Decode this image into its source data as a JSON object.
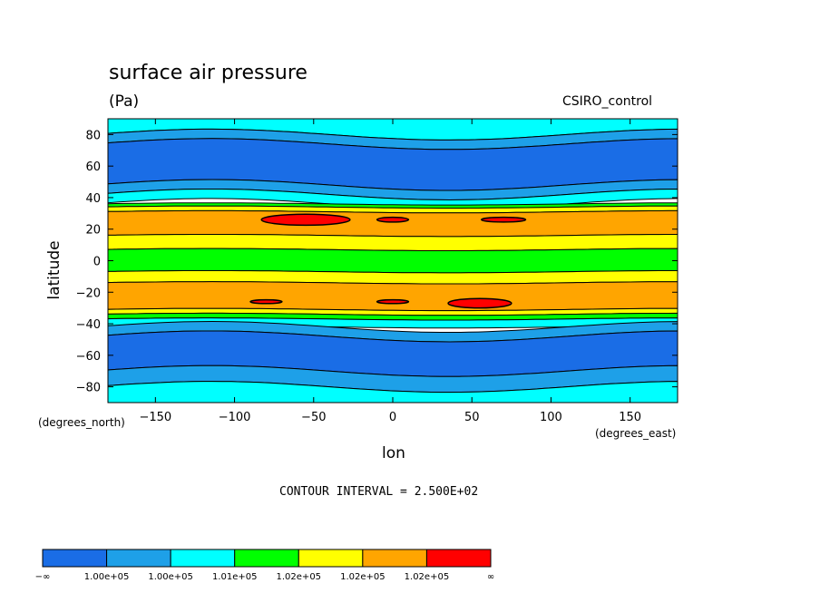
{
  "chart_data": {
    "type": "heatmap",
    "title": "surface air pressure",
    "units": "(Pa)",
    "model": "CSIRO_control",
    "xlabel": "lon",
    "ylabel": "latitude",
    "x_units": "(degrees_east)",
    "y_units": "(degrees_north)",
    "xlim": [
      -180,
      180
    ],
    "ylim": [
      -90,
      90
    ],
    "x_ticks": [
      -150,
      -100,
      -50,
      0,
      50,
      100,
      150
    ],
    "y_ticks": [
      80,
      60,
      40,
      20,
      0,
      -20,
      -40,
      -60,
      -80
    ],
    "x_tick_labels": [
      "−150",
      "−100",
      "−50",
      "0",
      "50",
      "100",
      "150"
    ],
    "y_tick_labels": [
      "80",
      "60",
      "40",
      "20",
      "0",
      "−20",
      "−40",
      "−60",
      "−80"
    ],
    "contour_interval": "CONTOUR INTERVAL = 2.500E+02",
    "colorbar": {
      "colors": [
        "#1a6de6",
        "#1ea0e8",
        "#00ffff",
        "#00ff00",
        "#ffff00",
        "#ffa500",
        "#ff0000"
      ],
      "labels": [
        "−∞",
        "1.00e+05",
        "1.00e+05",
        "1.01e+05",
        "1.02e+05",
        "1.02e+05",
        "1.02e+05",
        "∞"
      ]
    },
    "zonal_bands": [
      {
        "lat": [
          80,
          90
        ],
        "level": 2
      },
      {
        "lat": [
          74,
          80
        ],
        "level": 1
      },
      {
        "lat": [
          48,
          74
        ],
        "level": 0
      },
      {
        "lat": [
          42,
          48
        ],
        "level": 1
      },
      {
        "lat": [
          36,
          42
        ],
        "level": 2
      },
      {
        "lat": [
          34,
          36
        ],
        "level": 3
      },
      {
        "lat": [
          31,
          34
        ],
        "level": 4
      },
      {
        "lat": [
          16,
          31
        ],
        "level": 5
      },
      {
        "lat": [
          7,
          16
        ],
        "level": 4
      },
      {
        "lat": [
          -7,
          7
        ],
        "level": 3
      },
      {
        "lat": [
          -14,
          -7
        ],
        "level": 4
      },
      {
        "lat": [
          -31,
          -14
        ],
        "level": 5
      },
      {
        "lat": [
          -34,
          -31
        ],
        "level": 4
      },
      {
        "lat": [
          -37,
          -34
        ],
        "level": 3
      },
      {
        "lat": [
          -42,
          -37
        ],
        "level": 2
      },
      {
        "lat": [
          -48,
          -42
        ],
        "level": 1
      },
      {
        "lat": [
          -70,
          -48
        ],
        "level": 0
      },
      {
        "lat": [
          -80,
          -70
        ],
        "level": 1
      },
      {
        "lat": [
          -90,
          -80
        ],
        "level": 2
      }
    ],
    "high_cells": [
      {
        "lon": -55,
        "lat": 26,
        "dlon": 28,
        "dlat": 3.5,
        "level": 6
      },
      {
        "lon": 0,
        "lat": 26,
        "dlon": 10,
        "dlat": 1.5,
        "level": 6
      },
      {
        "lon": 70,
        "lat": 26,
        "dlon": 14,
        "dlat": 1.5,
        "level": 6
      },
      {
        "lon": 55,
        "lat": -27,
        "dlon": 20,
        "dlat": 3,
        "level": 6
      },
      {
        "lon": -80,
        "lat": -26,
        "dlon": 10,
        "dlat": 1.2,
        "level": 6
      },
      {
        "lon": 0,
        "lat": -26,
        "dlon": 10,
        "dlat": 1.2,
        "level": 6
      }
    ]
  }
}
